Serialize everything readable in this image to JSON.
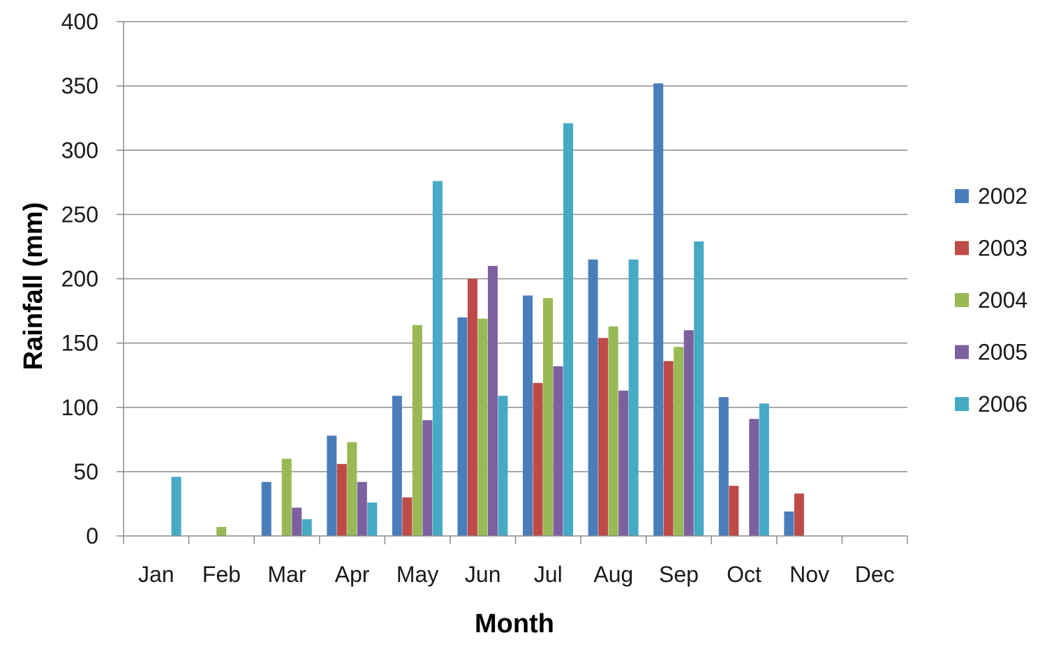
{
  "chart_data": {
    "type": "bar",
    "title": "",
    "xlabel": "Month",
    "ylabel": "Rainfall (mm)",
    "ylim": [
      0,
      400
    ],
    "yticks": [
      0,
      50,
      100,
      150,
      200,
      250,
      300,
      350,
      400
    ],
    "grid": true,
    "legend_position": "right",
    "categories": [
      "Jan",
      "Feb",
      "Mar",
      "Apr",
      "May",
      "Jun",
      "Jul",
      "Aug",
      "Sep",
      "Oct",
      "Nov",
      "Dec"
    ],
    "series": [
      {
        "name": "2002",
        "color": "#4a7ebb",
        "values": [
          0,
          0,
          42,
          78,
          109,
          170,
          187,
          215,
          352,
          108,
          19,
          0
        ]
      },
      {
        "name": "2003",
        "color": "#be4b48",
        "values": [
          0,
          0,
          0,
          56,
          30,
          200,
          119,
          154,
          136,
          39,
          33,
          0
        ]
      },
      {
        "name": "2004",
        "color": "#98b954",
        "values": [
          0,
          7,
          60,
          73,
          164,
          169,
          185,
          163,
          147,
          0,
          0,
          0
        ]
      },
      {
        "name": "2005",
        "color": "#7d60a0",
        "values": [
          0,
          0,
          22,
          42,
          90,
          210,
          132,
          113,
          160,
          91,
          0,
          0
        ]
      },
      {
        "name": "2006",
        "color": "#46aac5",
        "values": [
          46,
          0,
          13,
          26,
          276,
          109,
          321,
          215,
          229,
          103,
          0,
          0
        ]
      }
    ]
  }
}
